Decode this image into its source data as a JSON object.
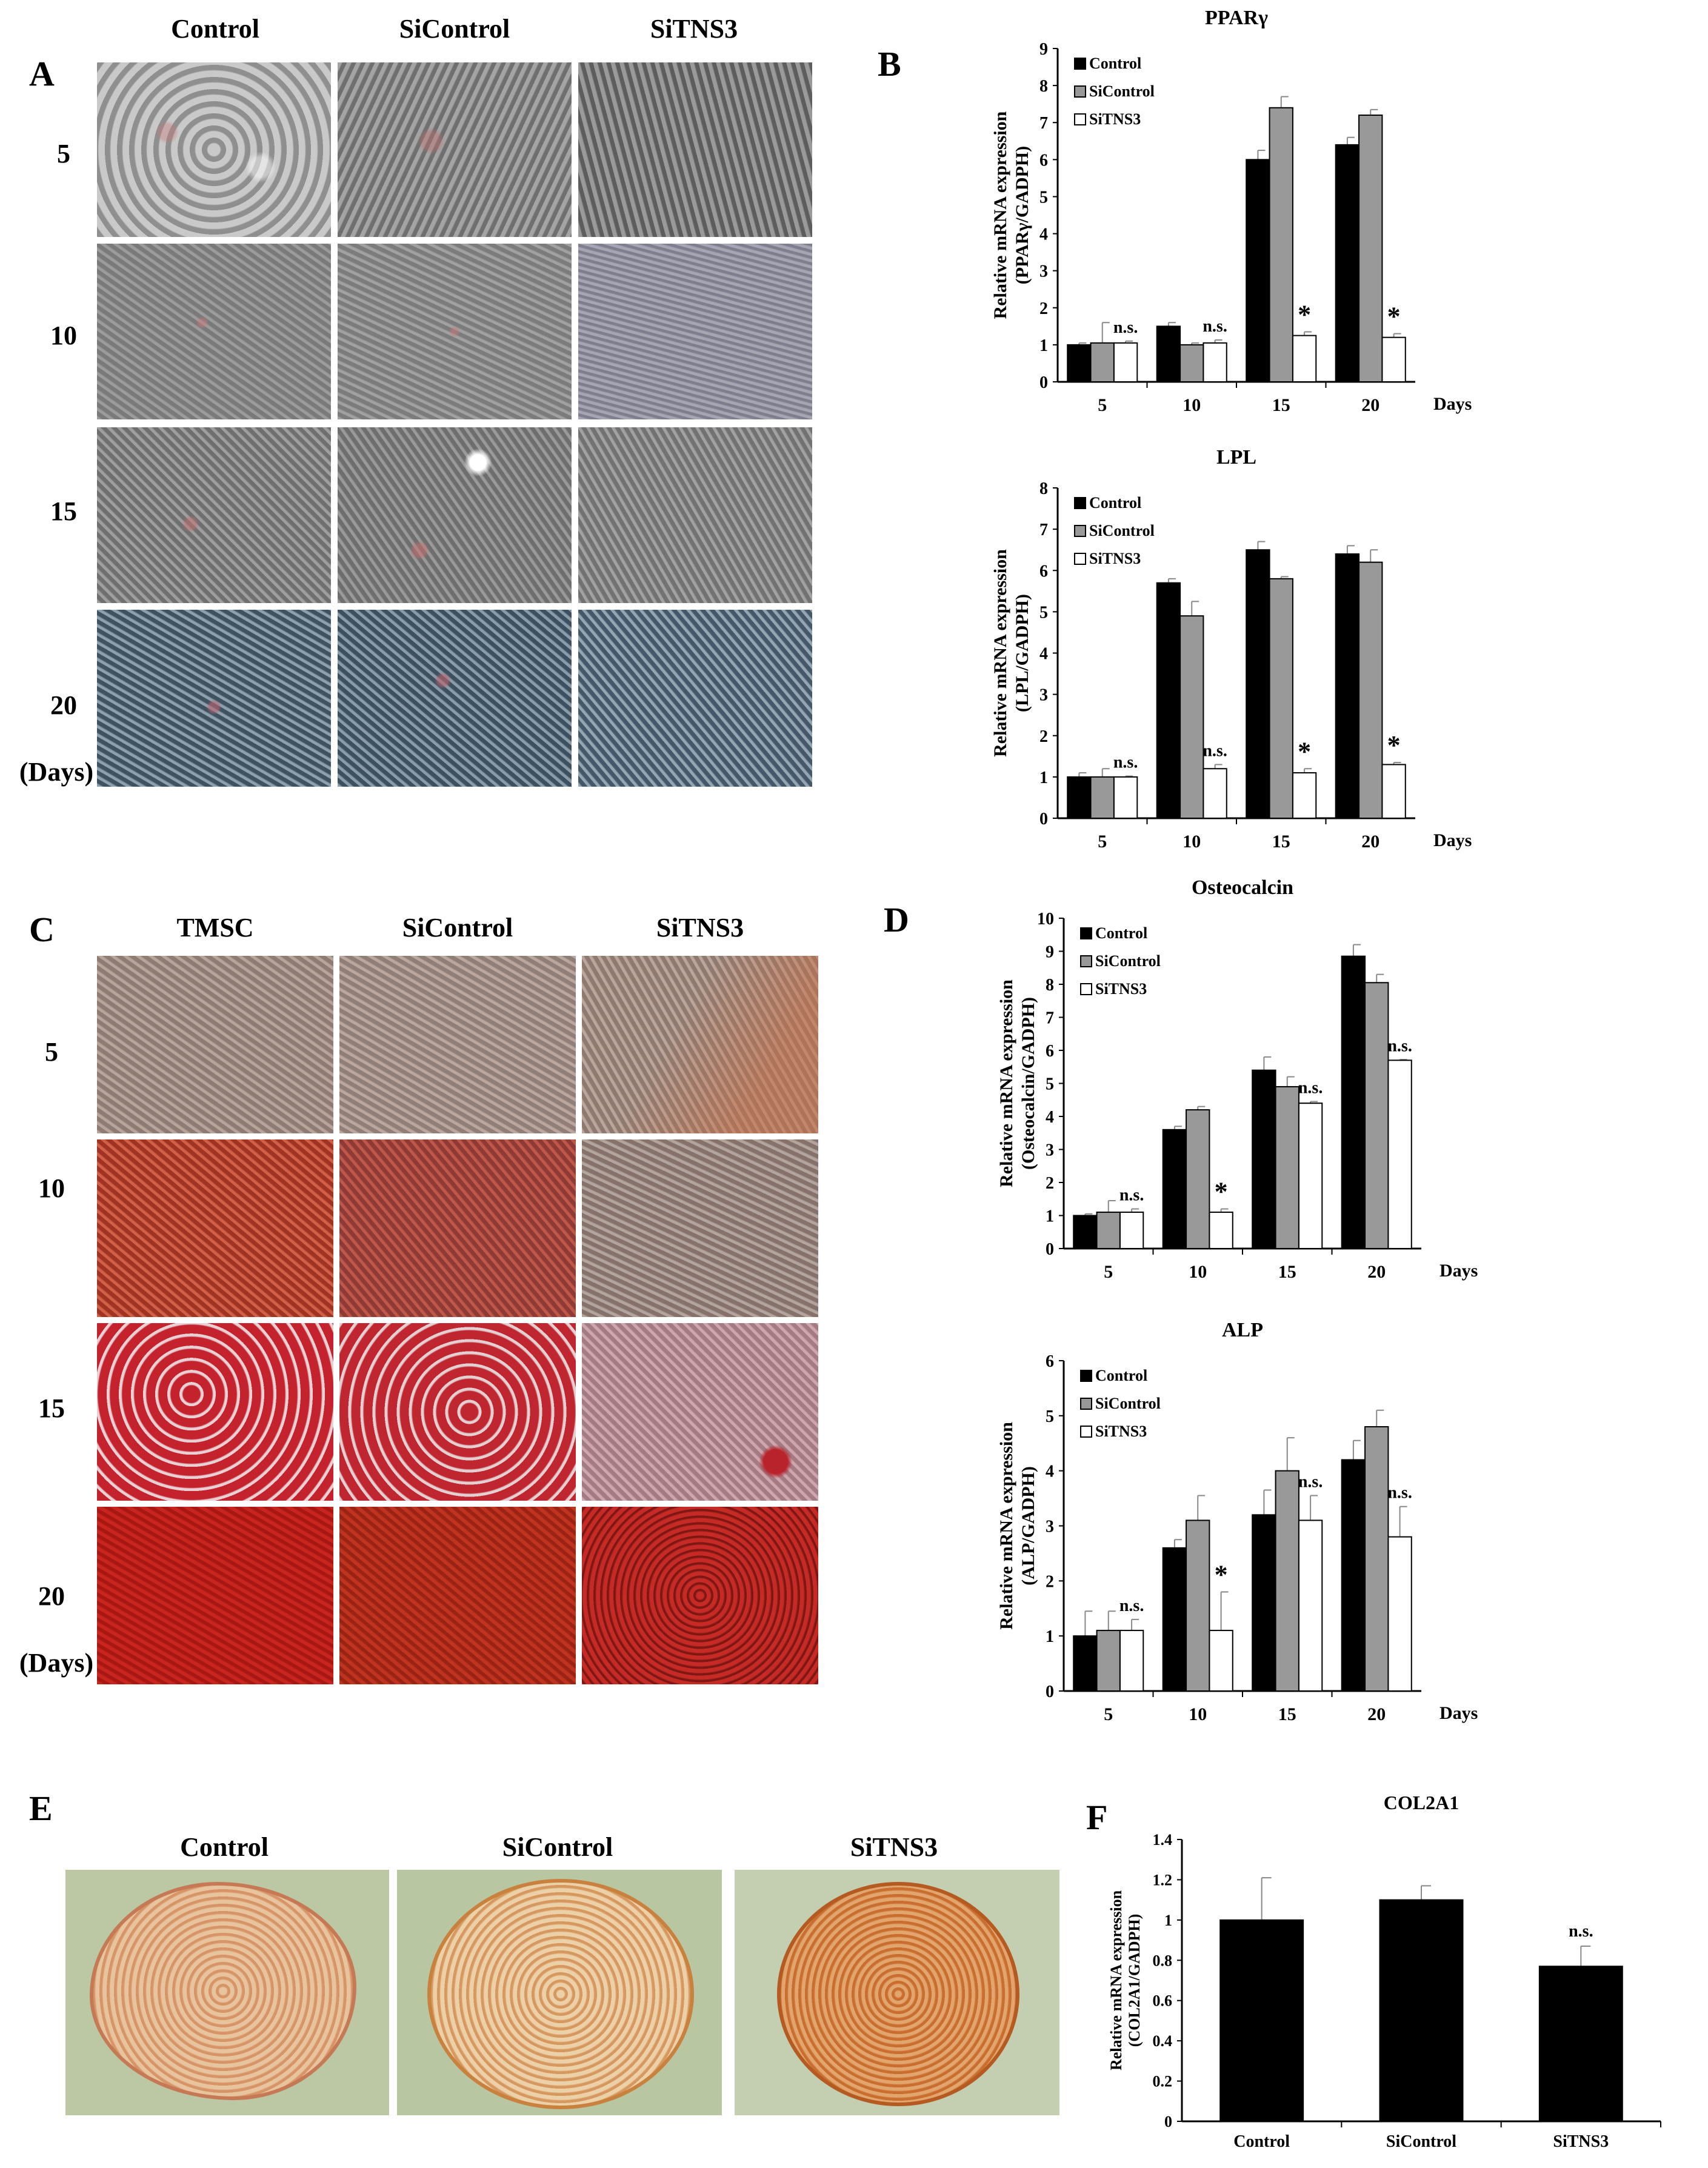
{
  "panel_labels": {
    "A": "A",
    "B": "B",
    "C": "C",
    "D": "D",
    "E": "E",
    "F": "F"
  },
  "panel_a": {
    "columns": [
      "Control",
      "SiControl",
      "SiTNS3"
    ],
    "rows": [
      "5",
      "10",
      "15",
      "20"
    ],
    "days_label": "(Days)"
  },
  "panel_c": {
    "columns": [
      "TMSC",
      "SiControl",
      "SiTNS3"
    ],
    "rows": [
      "5",
      "10",
      "15",
      "20"
    ],
    "days_label": "(Days)"
  },
  "panel_e": {
    "columns": [
      "Control",
      "SiControl",
      "SiTNS3"
    ]
  },
  "colors": {
    "control": "#000000",
    "sicontrol": "#999999",
    "sitns3": "#ffffff"
  },
  "chart_data": [
    {
      "id": "pparg",
      "type": "bar",
      "title": "PPARγ",
      "ylabel": "Relative mRNA expression\n(PPARγ/GADPH)",
      "xlabel": "Days",
      "categories": [
        "5",
        "10",
        "15",
        "20"
      ],
      "ylim": [
        0,
        9
      ],
      "yticks": [
        0,
        1,
        2,
        3,
        4,
        5,
        6,
        7,
        8,
        9
      ],
      "series": [
        {
          "name": "Control",
          "values": [
            1.0,
            1.5,
            6.0,
            6.4
          ],
          "errors": [
            0.05,
            0.1,
            0.25,
            0.2
          ]
        },
        {
          "name": "SiControl",
          "values": [
            1.05,
            1.0,
            7.4,
            7.2
          ],
          "errors": [
            0.55,
            0.05,
            0.3,
            0.15
          ]
        },
        {
          "name": "SiTNS3",
          "values": [
            1.05,
            1.05,
            1.25,
            1.2
          ],
          "errors": [
            0.05,
            0.08,
            0.1,
            0.1
          ]
        }
      ],
      "annotations": [
        "n.s.",
        "n.s.",
        "*",
        "*"
      ]
    },
    {
      "id": "lpl",
      "type": "bar",
      "title": "LPL",
      "ylabel": "Relative mRNA expression\n(LPL/GADPH)",
      "xlabel": "Days",
      "categories": [
        "5",
        "10",
        "15",
        "20"
      ],
      "ylim": [
        0,
        8
      ],
      "yticks": [
        0,
        1,
        2,
        3,
        4,
        5,
        6,
        7,
        8
      ],
      "series": [
        {
          "name": "Control",
          "values": [
            1.0,
            5.7,
            6.5,
            6.4
          ],
          "errors": [
            0.1,
            0.1,
            0.2,
            0.2
          ]
        },
        {
          "name": "SiControl",
          "values": [
            1.0,
            4.9,
            5.8,
            6.2
          ],
          "errors": [
            0.2,
            0.35,
            0.05,
            0.3
          ]
        },
        {
          "name": "SiTNS3",
          "values": [
            1.0,
            1.2,
            1.1,
            1.3
          ],
          "errors": [
            0.02,
            0.1,
            0.1,
            0.05
          ]
        }
      ],
      "annotations": [
        "n.s.",
        "n.s.",
        "*",
        "*"
      ]
    },
    {
      "id": "osteocalcin",
      "type": "bar",
      "title": "Osteocalcin",
      "ylabel": "Relative mRNA expression\n(Osteocalcin/GADPH)",
      "xlabel": "Days",
      "categories": [
        "5",
        "10",
        "15",
        "20"
      ],
      "ylim": [
        0,
        10
      ],
      "yticks": [
        0,
        1,
        2,
        3,
        4,
        5,
        6,
        7,
        8,
        9,
        10
      ],
      "series": [
        {
          "name": "Control",
          "values": [
            1.0,
            3.6,
            5.4,
            8.85
          ],
          "errors": [
            0.05,
            0.1,
            0.4,
            0.35
          ]
        },
        {
          "name": "SiControl",
          "values": [
            1.1,
            4.2,
            4.9,
            8.05
          ],
          "errors": [
            0.35,
            0.1,
            0.3,
            0.25
          ]
        },
        {
          "name": "SiTNS3",
          "values": [
            1.1,
            1.1,
            4.4,
            5.7
          ],
          "errors": [
            0.1,
            0.1,
            0.05,
            0.02
          ]
        }
      ],
      "annotations": [
        "n.s.",
        "*",
        "n.s.",
        "n.s."
      ]
    },
    {
      "id": "alp",
      "type": "bar",
      "title": "ALP",
      "ylabel": "Relative mRNA expression\n(ALP/GADPH)",
      "xlabel": "Days",
      "categories": [
        "5",
        "10",
        "15",
        "20"
      ],
      "ylim": [
        0,
        6
      ],
      "yticks": [
        0,
        1,
        2,
        3,
        4,
        5,
        6
      ],
      "series": [
        {
          "name": "Control",
          "values": [
            1.0,
            2.6,
            3.2,
            4.2
          ],
          "errors": [
            0.45,
            0.15,
            0.45,
            0.35
          ]
        },
        {
          "name": "SiControl",
          "values": [
            1.1,
            3.1,
            4.0,
            4.8
          ],
          "errors": [
            0.35,
            0.45,
            0.6,
            0.3
          ]
        },
        {
          "name": "SiTNS3",
          "values": [
            1.1,
            1.1,
            3.1,
            2.8
          ],
          "errors": [
            0.2,
            0.7,
            0.45,
            0.55
          ]
        }
      ],
      "annotations": [
        "n.s.",
        "*",
        "n.s.",
        "n.s."
      ]
    },
    {
      "id": "col2a1",
      "type": "bar",
      "title": "COL2A1",
      "ylabel": "Relative mRNA expression\n(COL2A1/GADPH)",
      "xlabel": "",
      "categories": [
        "Control",
        "SiControl",
        "SiTNS3"
      ],
      "ylim": [
        0,
        1.4
      ],
      "yticks": [
        "0",
        "0.2",
        "0.4",
        "0.6",
        "0.8",
        "1",
        "1.2",
        "1.4"
      ],
      "values": [
        1.0,
        1.1,
        0.77
      ],
      "errors": [
        0.21,
        0.07,
        0.1
      ],
      "annotations": [
        "",
        "",
        "n.s."
      ]
    }
  ]
}
